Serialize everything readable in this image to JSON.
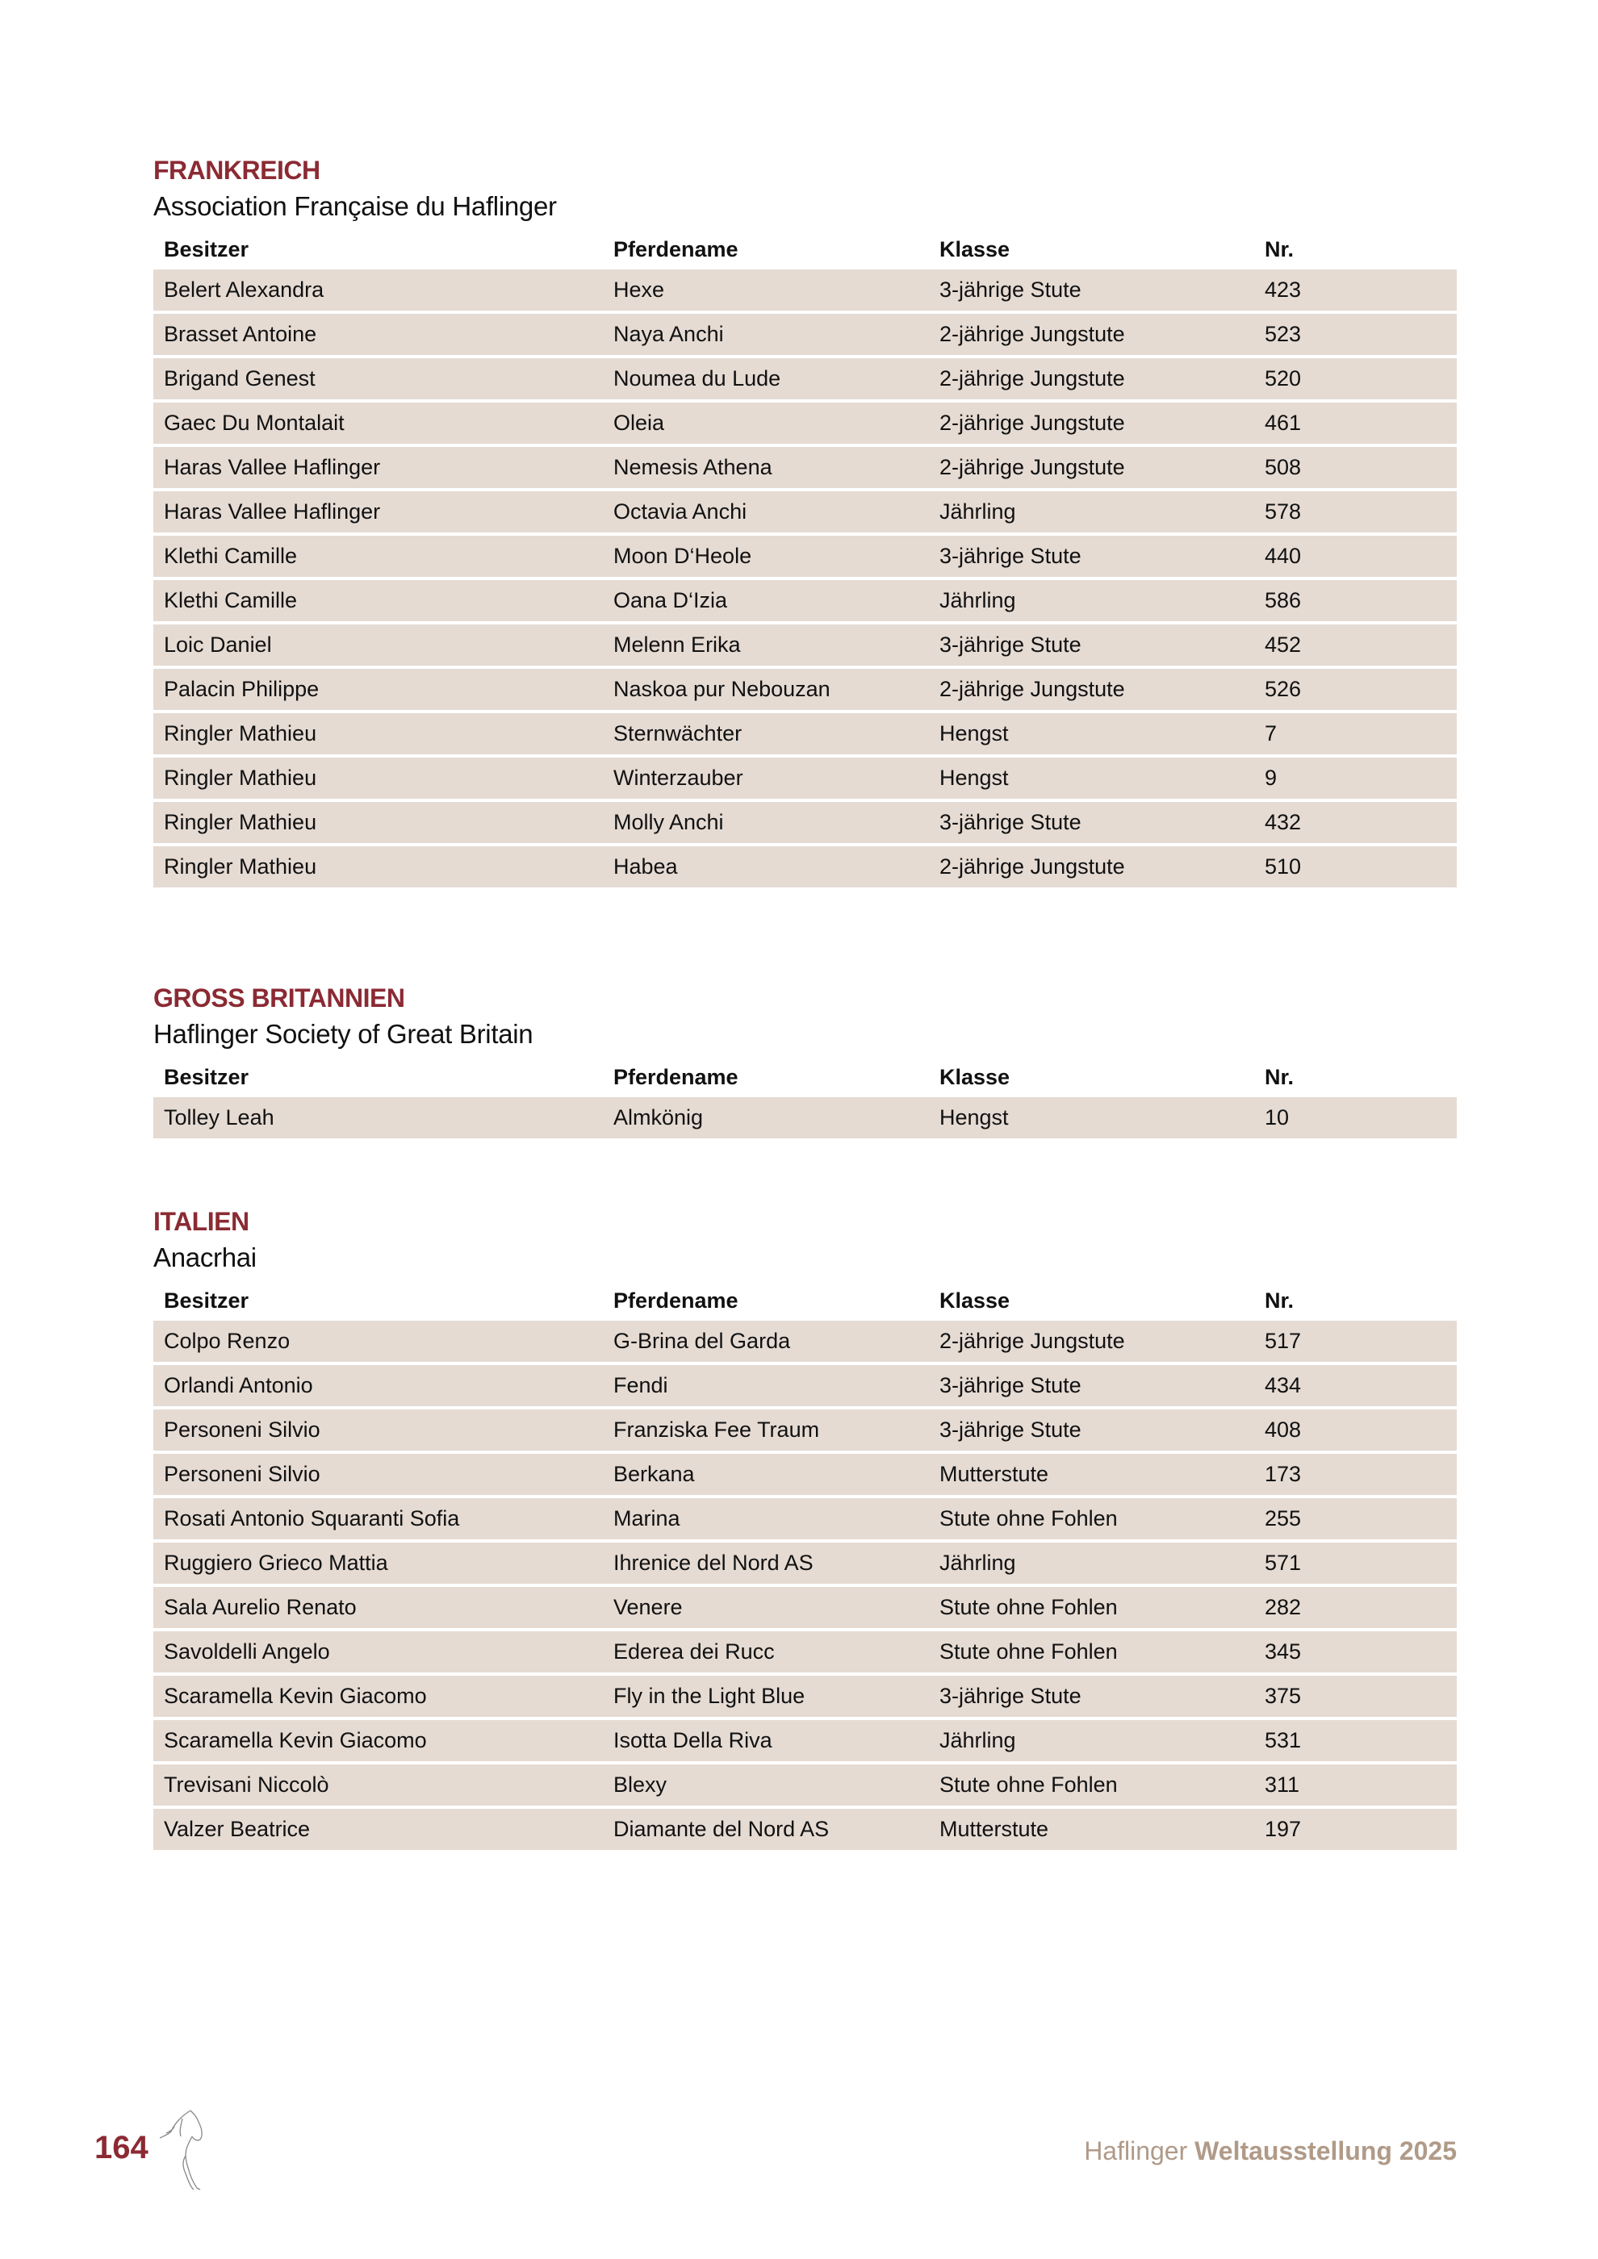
{
  "columns": [
    "Besitzer",
    "Pferdename",
    "Klasse",
    "Nr."
  ],
  "sections": [
    {
      "country": "FRANKREICH",
      "association": "Association Française du Haflinger",
      "rows": [
        [
          "Belert Alexandra",
          "Hexe",
          "3-jährige Stute",
          "423"
        ],
        [
          "Brasset Antoine",
          "Naya Anchi",
          "2-jährige Jungstute",
          "523"
        ],
        [
          "Brigand Genest",
          "Noumea du Lude",
          "2-jährige Jungstute",
          "520"
        ],
        [
          "Gaec Du Montalait",
          "Oleia",
          "2-jährige Jungstute",
          "461"
        ],
        [
          "Haras Vallee Haflinger",
          "Nemesis Athena",
          "2-jährige Jungstute",
          "508"
        ],
        [
          "Haras Vallee Haflinger",
          "Octavia Anchi",
          "Jährling",
          "578"
        ],
        [
          "Klethi Camille",
          "Moon D‘Heole",
          "3-jährige Stute",
          "440"
        ],
        [
          "Klethi Camille",
          "Oana D‘Izia",
          "Jährling",
          "586"
        ],
        [
          "Loic Daniel",
          "Melenn Erika",
          "3-jährige Stute",
          "452"
        ],
        [
          "Palacin Philippe",
          "Naskoa pur Nebouzan",
          "2-jährige Jungstute",
          "526"
        ],
        [
          "Ringler Mathieu",
          "Sternwächter",
          "Hengst",
          "7"
        ],
        [
          "Ringler Mathieu",
          "Winterzauber",
          "Hengst",
          "9"
        ],
        [
          "Ringler Mathieu",
          "Molly Anchi",
          "3-jährige Stute",
          "432"
        ],
        [
          "Ringler Mathieu",
          "Habea",
          "2-jährige Jungstute",
          "510"
        ]
      ]
    },
    {
      "country": "GROSS BRITANNIEN",
      "association": "Haflinger Society of Great Britain",
      "rows": [
        [
          "Tolley Leah",
          "Almkönig",
          "Hengst",
          "10"
        ]
      ]
    },
    {
      "country": "ITALIEN",
      "association": "Anacrhai",
      "rows": [
        [
          "Colpo Renzo",
          "G-Brina del Garda",
          "2-jährige Jungstute",
          "517"
        ],
        [
          "Orlandi Antonio",
          "Fendi",
          "3-jährige Stute",
          "434"
        ],
        [
          "Personeni Silvio",
          "Franziska Fee Traum",
          "3-jährige Stute",
          "408"
        ],
        [
          "Personeni Silvio",
          "Berkana",
          "Mutterstute",
          "173"
        ],
        [
          "Rosati Antonio Squaranti Sofia",
          "Marina",
          "Stute ohne Fohlen",
          "255"
        ],
        [
          "Ruggiero Grieco Mattia",
          "Ihrenice del Nord AS",
          "Jährling",
          "571"
        ],
        [
          "Sala Aurelio Renato",
          "Venere",
          "Stute ohne Fohlen",
          "282"
        ],
        [
          "Savoldelli Angelo",
          "Ederea dei Rucc",
          "Stute ohne Fohlen",
          "345"
        ],
        [
          "Scaramella Kevin Giacomo",
          "Fly in the Light Blue",
          "3-jährige Stute",
          "375"
        ],
        [
          "Scaramella Kevin Giacomo",
          "Isotta Della Riva",
          "Jährling",
          "531"
        ],
        [
          "Trevisani Niccolò",
          "Blexy",
          "Stute ohne Fohlen",
          "311"
        ],
        [
          "Valzer Beatrice",
          "Diamante del Nord AS",
          "Mutterstute",
          "197"
        ]
      ]
    }
  ],
  "footer": {
    "page_number": "164",
    "title_light": "Haflinger",
    "title_bold": "Weltausstellung 2025",
    "logo_icon": "horse-sketch-icon"
  },
  "colors": {
    "accent": "#8b2a33",
    "row_background": "#e5dbd3",
    "footer_text": "#b09a88"
  }
}
